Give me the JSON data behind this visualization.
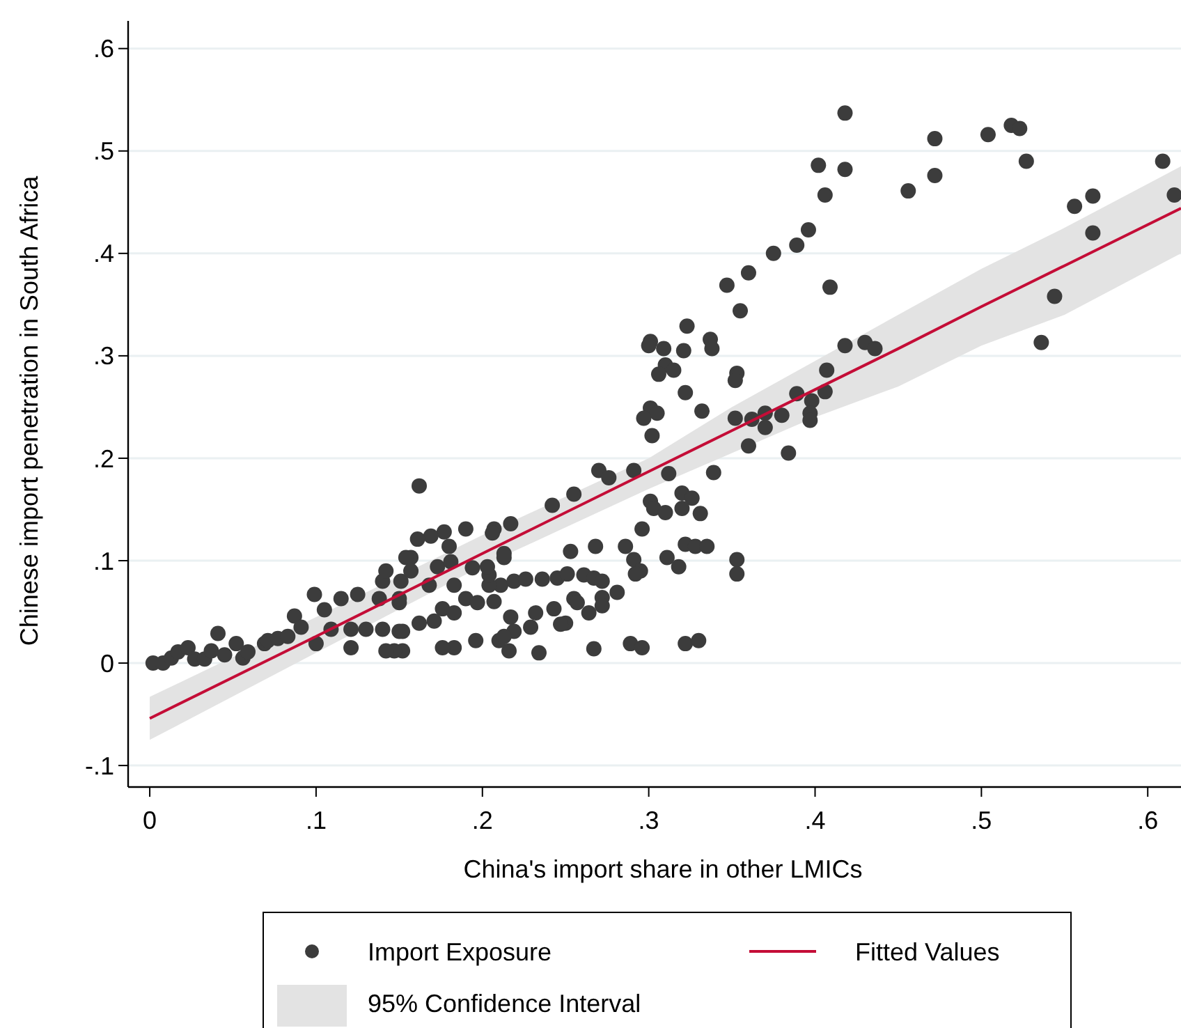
{
  "chart_data": {
    "type": "scatter",
    "xlabel": "China's import share in other LMICs",
    "ylabel": "Chinese import penetration in South Africa",
    "xlim": [
      -0.013,
      0.62
    ],
    "ylim": [
      -0.121,
      0.627
    ],
    "xticks": [
      {
        "value": 0,
        "label": "0"
      },
      {
        "value": 0.1,
        "label": ".1"
      },
      {
        "value": 0.2,
        "label": ".2"
      },
      {
        "value": 0.3,
        "label": ".3"
      },
      {
        "value": 0.4,
        "label": ".4"
      },
      {
        "value": 0.5,
        "label": ".5"
      },
      {
        "value": 0.6,
        "label": ".6"
      }
    ],
    "yticks": [
      {
        "value": -0.1,
        "label": "-.1"
      },
      {
        "value": 0,
        "label": "0"
      },
      {
        "value": 0.1,
        "label": ".1"
      },
      {
        "value": 0.2,
        "label": ".2"
      },
      {
        "value": 0.3,
        "label": ".3"
      },
      {
        "value": 0.4,
        "label": ".4"
      },
      {
        "value": 0.5,
        "label": ".5"
      },
      {
        "value": 0.6,
        "label": ".6"
      }
    ],
    "grid": "y",
    "legend": "bottom",
    "series": [
      {
        "name": "Import Exposure",
        "marker": "circle",
        "color": "#3c3c3c",
        "x": [
          0.418,
          0.402,
          0.418,
          0.406,
          0.396,
          0.389,
          0.375,
          0.36,
          0.347,
          0.355,
          0.323,
          0.301,
          0.3,
          0.309,
          0.321,
          0.337,
          0.338,
          0.31,
          0.315,
          0.306,
          0.353,
          0.352,
          0.322,
          0.301,
          0.305,
          0.297,
          0.332,
          0.302,
          0.409,
          0.456,
          0.472,
          0.472,
          0.504,
          0.518,
          0.523,
          0.527,
          0.609,
          0.616,
          0.556,
          0.567,
          0.567,
          0.544,
          0.536,
          0.418,
          0.43,
          0.436,
          0.407,
          0.406,
          0.389,
          0.398,
          0.397,
          0.397,
          0.37,
          0.38,
          0.362,
          0.352,
          0.37,
          0.36,
          0.384,
          0.339,
          0.312,
          0.27,
          0.291,
          0.276,
          0.32,
          0.255,
          0.162,
          0.242,
          0.301,
          0.303,
          0.31,
          0.326,
          0.32,
          0.331,
          0.296,
          0.322,
          0.328,
          0.335,
          0.311,
          0.318,
          0.353,
          0.353,
          0.286,
          0.291,
          0.295,
          0.292,
          0.268,
          0.253,
          0.281,
          0.272,
          0.272,
          0.264,
          0.255,
          0.257,
          0.25,
          0.247,
          0.243,
          0.267,
          0.289,
          0.296,
          0.322,
          0.33,
          0.234,
          0.216,
          0.21,
          0.196,
          0.183,
          0.176,
          0.152,
          0.147,
          0.211,
          0.219,
          0.226,
          0.236,
          0.245,
          0.251,
          0.261,
          0.267,
          0.272,
          0.204,
          0.204,
          0.213,
          0.213,
          0.217,
          0.207,
          0.206,
          0.19,
          0.177,
          0.169,
          0.161,
          0.18,
          0.157,
          0.173,
          0.181,
          0.194,
          0.203,
          0.183,
          0.168,
          0.19,
          0.197,
          0.207,
          0.176,
          0.183,
          0.171,
          0.162,
          0.15,
          0.15,
          0.152,
          0.217,
          0.219,
          0.232,
          0.229,
          0.213,
          0.002,
          0.008,
          0.013,
          0.017,
          0.023,
          0.027,
          0.033,
          0.037,
          0.041,
          0.045,
          0.052,
          0.056,
          0.059,
          0.069,
          0.071,
          0.077,
          0.083,
          0.087,
          0.091,
          0.1,
          0.099,
          0.105,
          0.109,
          0.115,
          0.121,
          0.121,
          0.125,
          0.13,
          0.138,
          0.14,
          0.142,
          0.14,
          0.142,
          0.15,
          0.151,
          0.154,
          0.157
        ],
        "values": [
          0.537,
          0.486,
          0.482,
          0.457,
          0.423,
          0.408,
          0.4,
          0.381,
          0.369,
          0.344,
          0.329,
          0.314,
          0.31,
          0.307,
          0.305,
          0.316,
          0.307,
          0.291,
          0.286,
          0.282,
          0.283,
          0.276,
          0.264,
          0.249,
          0.244,
          0.239,
          0.246,
          0.222,
          0.367,
          0.461,
          0.512,
          0.476,
          0.516,
          0.525,
          0.522,
          0.49,
          0.49,
          0.457,
          0.446,
          0.456,
          0.42,
          0.358,
          0.313,
          0.31,
          0.313,
          0.307,
          0.286,
          0.265,
          0.263,
          0.256,
          0.244,
          0.237,
          0.244,
          0.242,
          0.238,
          0.239,
          0.23,
          0.212,
          0.205,
          0.186,
          0.185,
          0.188,
          0.188,
          0.181,
          0.166,
          0.165,
          0.173,
          0.154,
          0.158,
          0.151,
          0.147,
          0.161,
          0.151,
          0.146,
          0.131,
          0.116,
          0.114,
          0.114,
          0.103,
          0.094,
          0.101,
          0.087,
          0.114,
          0.101,
          0.09,
          0.087,
          0.114,
          0.109,
          0.069,
          0.064,
          0.056,
          0.049,
          0.063,
          0.059,
          0.039,
          0.038,
          0.053,
          0.014,
          0.019,
          0.015,
          0.019,
          0.022,
          0.01,
          0.012,
          0.022,
          0.022,
          0.015,
          0.015,
          0.012,
          0.012,
          0.076,
          0.08,
          0.082,
          0.082,
          0.083,
          0.087,
          0.086,
          0.083,
          0.08,
          0.076,
          0.086,
          0.103,
          0.107,
          0.136,
          0.131,
          0.127,
          0.131,
          0.128,
          0.124,
          0.121,
          0.114,
          0.103,
          0.094,
          0.099,
          0.093,
          0.094,
          0.076,
          0.076,
          0.063,
          0.059,
          0.06,
          0.053,
          0.049,
          0.041,
          0.039,
          0.059,
          0.031,
          0.031,
          0.045,
          0.031,
          0.049,
          0.035,
          0.026,
          0.0,
          0.0,
          0.005,
          0.011,
          0.015,
          0.004,
          0.004,
          0.012,
          0.029,
          0.008,
          0.019,
          0.005,
          0.011,
          0.019,
          0.022,
          0.024,
          0.026,
          0.046,
          0.035,
          0.019,
          0.067,
          0.052,
          0.033,
          0.063,
          0.033,
          0.015,
          0.067,
          0.033,
          0.063,
          0.08,
          0.09,
          0.033,
          0.012,
          0.063,
          0.08,
          0.103,
          0.09
        ]
      },
      {
        "name": "Fitted Values",
        "type": "line",
        "marker": "none",
        "color": "#c40d37",
        "x": [
          0,
          0.1,
          0.2,
          0.3,
          0.35,
          0.4,
          0.45,
          0.5,
          0.55,
          0.62
        ],
        "values": [
          -0.054,
          0.026,
          0.107,
          0.187,
          0.227,
          0.267,
          0.307,
          0.348,
          0.388,
          0.444
        ],
        "lower": [
          -0.075,
          0.01,
          0.095,
          0.17,
          0.205,
          0.24,
          0.27,
          0.31,
          0.34,
          0.4
        ],
        "upper": [
          -0.033,
          0.045,
          0.125,
          0.2,
          0.25,
          0.295,
          0.34,
          0.385,
          0.425,
          0.485
        ]
      }
    ],
    "annotations": [
      "95% Confidence Interval"
    ]
  }
}
